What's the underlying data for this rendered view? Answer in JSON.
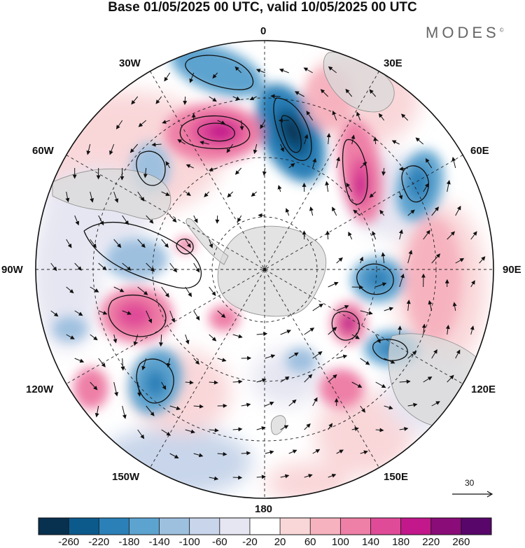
{
  "title": "Base 01/05/2025 00 UTC, valid 10/05/2025 00 UTC",
  "brand": "MODES",
  "brand_mark": "©",
  "longitude_labels": {
    "lon_0": "0",
    "lon_30e": "30E",
    "lon_60e": "60E",
    "lon_90e": "90E",
    "lon_120e": "120E",
    "lon_150e": "150E",
    "lon_180": "180",
    "lon_150w": "150W",
    "lon_120w": "120W",
    "lon_90w": "90W",
    "lon_60w": "60W",
    "lon_30w": "30W"
  },
  "reference_vector": {
    "label": "30"
  },
  "colorbar": {
    "labels": [
      "-260",
      "-220",
      "-180",
      "-140",
      "-100",
      "-60",
      "-20",
      "20",
      "60",
      "100",
      "140",
      "180",
      "220",
      "260"
    ],
    "colors": [
      "#08304f",
      "#0c5a8c",
      "#2b80b8",
      "#5da3cf",
      "#9ec0df",
      "#c8d5ea",
      "#e6e6f2",
      "#ffffff",
      "#f9d7d9",
      "#f6b3bf",
      "#ee7fa6",
      "#e04b98",
      "#c2188b",
      "#8a0c78",
      "#58066a"
    ]
  },
  "colors": {
    "land_fill": "#d9d9d9",
    "coast": "#8a8a8a",
    "grid": "#222222"
  }
}
